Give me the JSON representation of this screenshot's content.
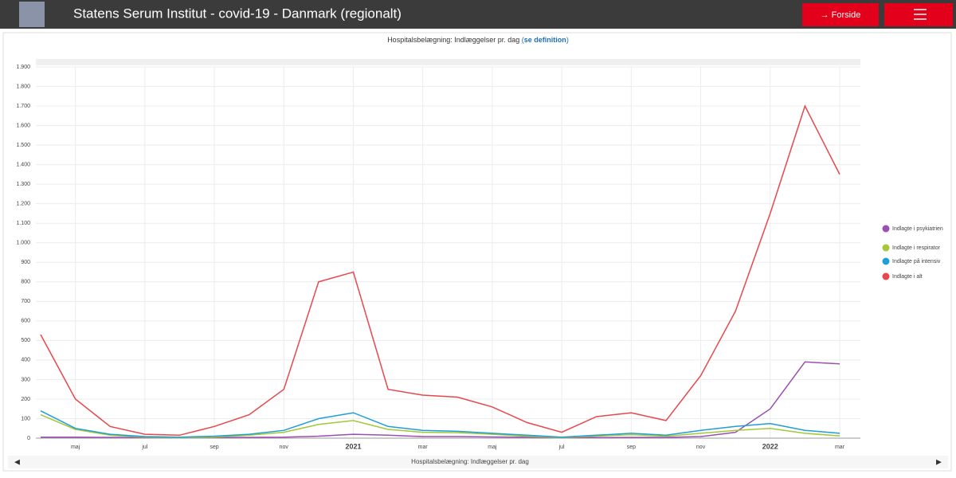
{
  "header": {
    "title": "Statens Serum Institut - covid-19 - Danmark (regionalt)",
    "home_button": "→ Forside"
  },
  "chart_data": {
    "type": "line",
    "title_parts": [
      "Hospitalsbelægning: Indlæggelser pr. dag ",
      "(",
      "se definition",
      ")"
    ],
    "scrollbar_label": "Hospitalsbelægning: Indlæggelser pr. dag",
    "x": [
      "2020-04",
      "2020-05",
      "2020-06",
      "2020-07",
      "2020-08",
      "2020-09",
      "2020-10",
      "2020-11",
      "2020-12",
      "2021-01",
      "2021-02",
      "2021-03",
      "2021-04",
      "2021-05",
      "2021-06",
      "2021-07",
      "2021-08",
      "2021-09",
      "2021-10",
      "2021-11",
      "2021-12",
      "2022-01",
      "2022-02",
      "2022-03"
    ],
    "xlim": [
      "2020-04",
      "2022-03"
    ],
    "xticks": [
      {
        "value": "2020-05",
        "label": "maj"
      },
      {
        "value": "2020-07",
        "label": "jul"
      },
      {
        "value": "2020-09",
        "label": "sep"
      },
      {
        "value": "2020-11",
        "label": "nov"
      },
      {
        "value": "2021-01",
        "label": "2021"
      },
      {
        "value": "2021-03",
        "label": "mar"
      },
      {
        "value": "2021-05",
        "label": "maj"
      },
      {
        "value": "2021-07",
        "label": "jul"
      },
      {
        "value": "2021-09",
        "label": "sep"
      },
      {
        "value": "2021-11",
        "label": "nov"
      },
      {
        "value": "2022-01",
        "label": "2022"
      },
      {
        "value": "2022-03",
        "label": "mar"
      }
    ],
    "ylim": [
      0,
      1900
    ],
    "yticks": [
      0,
      100,
      200,
      300,
      400,
      500,
      600,
      700,
      800,
      900,
      {
        "value": 1000,
        "label": "1.000"
      },
      {
        "value": 1100,
        "label": "1.100"
      },
      {
        "value": 1200,
        "label": "1.200"
      },
      {
        "value": 1300,
        "label": "1.300"
      },
      {
        "value": 1400,
        "label": "1.400"
      },
      {
        "value": 1500,
        "label": "1.500"
      },
      {
        "value": 1600,
        "label": "1.600"
      },
      {
        "value": 1700,
        "label": "1.700"
      },
      {
        "value": 1800,
        "label": "1.800"
      },
      {
        "value": 1900,
        "label": "1.900"
      }
    ],
    "grid": true,
    "legend": "right",
    "series": [
      {
        "name": "Indlagte i psykiatrien",
        "color": "#9b4fb0",
        "values": [
          5,
          5,
          4,
          3,
          3,
          3,
          4,
          5,
          10,
          20,
          15,
          8,
          8,
          6,
          5,
          3,
          3,
          4,
          4,
          8,
          30,
          150,
          390,
          380
        ]
      },
      {
        "name": "Indlagte i respirator",
        "color": "#a2c83a",
        "values": [
          120,
          45,
          15,
          5,
          3,
          5,
          15,
          30,
          70,
          90,
          45,
          30,
          28,
          20,
          10,
          3,
          10,
          18,
          10,
          25,
          40,
          50,
          25,
          12
        ]
      },
      {
        "name": "Indlagte på intensiv",
        "color": "#1f9ed6",
        "values": [
          140,
          50,
          20,
          8,
          5,
          10,
          20,
          40,
          100,
          130,
          60,
          40,
          35,
          25,
          15,
          5,
          15,
          25,
          15,
          40,
          60,
          75,
          40,
          25
        ]
      },
      {
        "name": "Indlagte i alt",
        "color": "#e8474b",
        "values": [
          530,
          200,
          60,
          20,
          15,
          60,
          120,
          250,
          800,
          850,
          250,
          220,
          210,
          160,
          80,
          30,
          110,
          130,
          90,
          320,
          650,
          1150,
          1700,
          1350
        ]
      }
    ]
  }
}
